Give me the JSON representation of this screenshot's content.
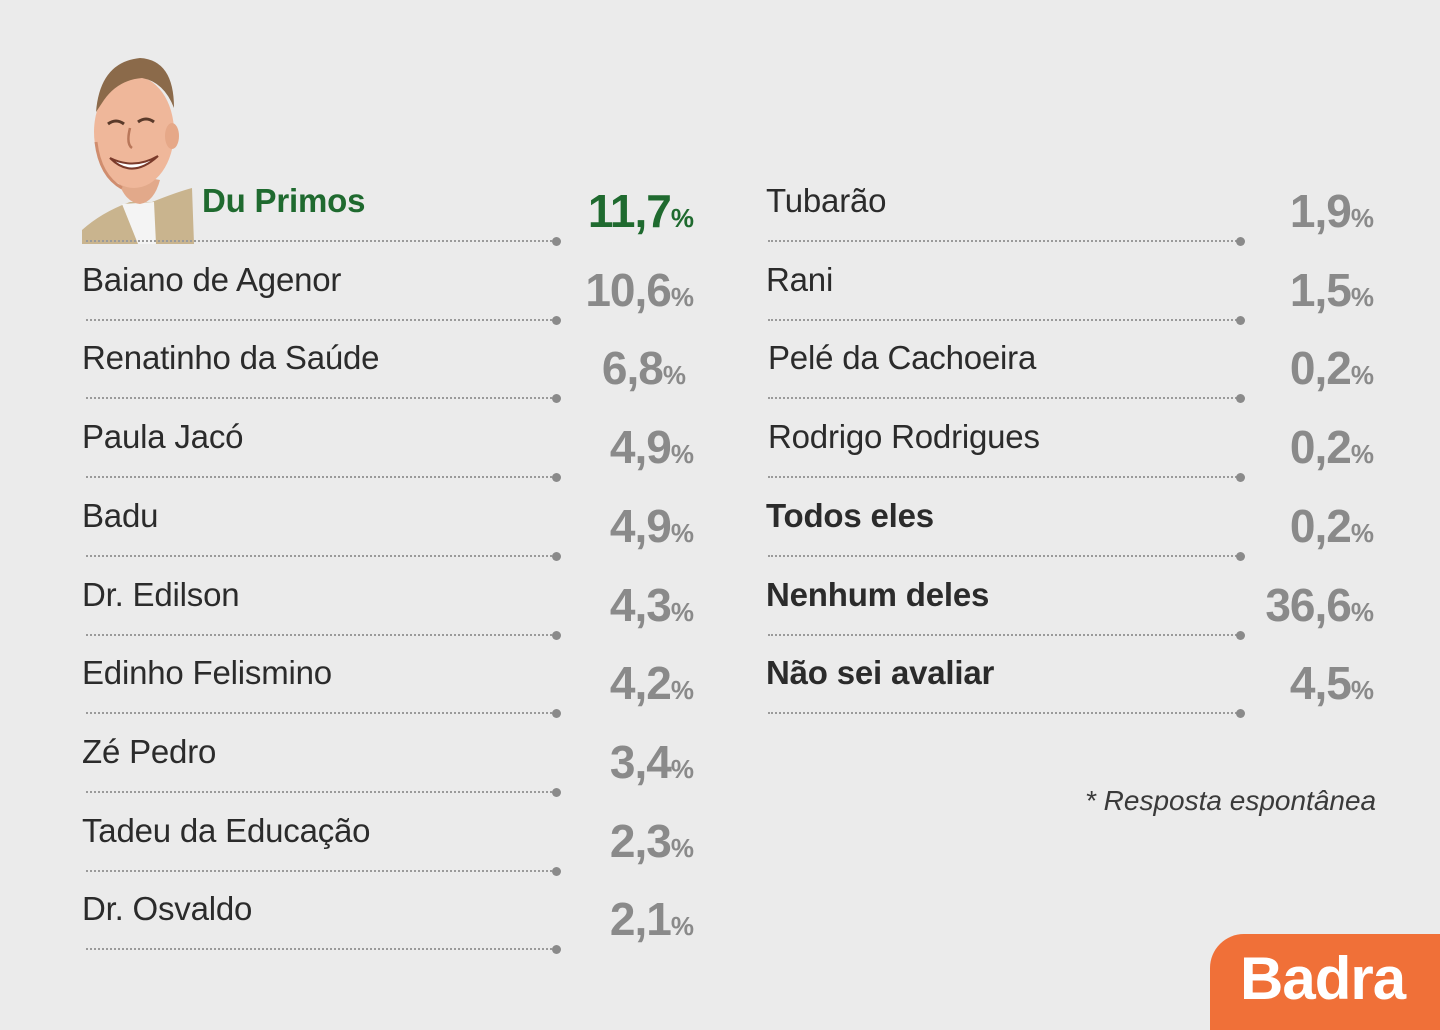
{
  "chart_data": {
    "type": "table",
    "columns": [
      {
        "rows": [
          {
            "name": "Du Primos",
            "value": "11,7",
            "unit": "%",
            "highlight": true
          },
          {
            "name": "Baiano de Agenor",
            "value": "10,6",
            "unit": "%"
          },
          {
            "name": "Renatinho da Saúde",
            "value": "6,8",
            "unit": "%"
          },
          {
            "name": "Paula Jacó",
            "value": "4,9",
            "unit": "%"
          },
          {
            "name": "Badu",
            "value": "4,9",
            "unit": "%"
          },
          {
            "name": "Dr. Edilson",
            "value": "4,3",
            "unit": "%"
          },
          {
            "name": "Edinho Felismino",
            "value": "4,2",
            "unit": "%"
          },
          {
            "name": "Zé Pedro",
            "value": "3,4",
            "unit": "%"
          },
          {
            "name": "Tadeu da Educação",
            "value": "2,3",
            "unit": "%"
          },
          {
            "name": "Dr. Osvaldo",
            "value": "2,1",
            "unit": "%"
          }
        ]
      },
      {
        "rows": [
          {
            "name": "Tubarão",
            "value": "1,9",
            "unit": "%"
          },
          {
            "name": "Rani",
            "value": "1,5",
            "unit": "%"
          },
          {
            "name": "Pelé da Cachoeira",
            "value": "0,2",
            "unit": "%"
          },
          {
            "name": "Rodrigo Rodrigues",
            "value": "0,2",
            "unit": "%"
          },
          {
            "name": "Todos eles",
            "value": "0,2",
            "unit": "%",
            "bold": true
          },
          {
            "name": "Nenhum deles",
            "value": "36,6",
            "unit": "%",
            "bold": true
          },
          {
            "name": "Não sei avaliar",
            "value": "4,5",
            "unit": "%",
            "bold": true
          }
        ]
      }
    ]
  },
  "footnote": "* Resposta espontânea",
  "logo": {
    "text": "Badra",
    "color": "#f07038"
  },
  "colors": {
    "highlight": "#1f6a2f",
    "value": "#8a8a8a",
    "name": "#2b2b2b",
    "background": "#ebebeb"
  },
  "portrait": {
    "icon": "candidate-caricature-icon"
  }
}
